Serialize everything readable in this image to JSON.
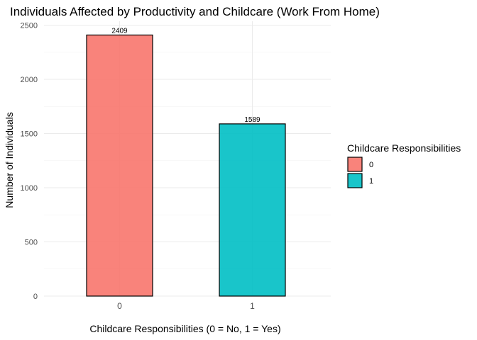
{
  "chart_data": {
    "type": "bar",
    "title": "Individuals Affected by Productivity and Childcare (Work From Home)",
    "xlabel": "Childcare Responsibilities (0 = No, 1 = Yes)",
    "ylabel": "Number of Individuals",
    "categories": [
      "0",
      "1"
    ],
    "values": [
      2409,
      1589
    ],
    "data_labels": [
      "2409",
      "1589"
    ],
    "colors": [
      "#F8766D",
      "#00BFC4"
    ],
    "ylim": [
      0,
      2500
    ],
    "yticks": [
      0,
      500,
      1000,
      1500,
      2000,
      2500
    ],
    "ytick_labels": [
      "0",
      "500",
      "1000",
      "1500",
      "2000",
      "2500"
    ],
    "grid": true,
    "legend": {
      "title": "Childcare Responsibilities",
      "position": "right",
      "items": [
        {
          "label": "0",
          "color": "#F8766D"
        },
        {
          "label": "1",
          "color": "#00BFC4"
        }
      ]
    }
  }
}
